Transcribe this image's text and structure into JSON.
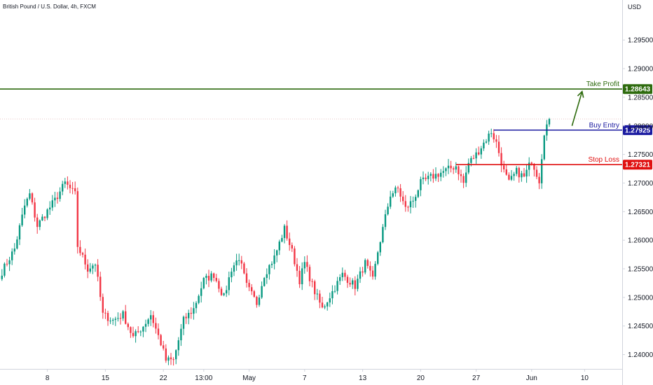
{
  "header": {
    "title": "British Pound / U.S. Dollar, 4h, FXCM",
    "currency": "USD"
  },
  "chart_data": {
    "type": "candlestick",
    "ylim": [
      1.2375,
      1.302
    ],
    "y_ticks": [
      1.24,
      1.245,
      1.25,
      1.255,
      1.26,
      1.265,
      1.27,
      1.275,
      1.28,
      1.285,
      1.29,
      1.295
    ],
    "y_tick_labels": [
      "1.24000",
      "1.24500",
      "1.25000",
      "1.25500",
      "1.26000",
      "1.26500",
      "1.27000",
      "1.27500",
      "1.28000",
      "1.28500",
      "1.29000",
      "1.29500"
    ],
    "x_labels": [
      "8",
      "15",
      "22",
      "13:00",
      "May",
      "7",
      "13",
      "20",
      "27",
      "Jun",
      "10"
    ],
    "bar_count": 246,
    "x_label_bars": [
      18,
      41,
      64,
      80,
      98,
      120,
      143,
      166,
      188,
      210,
      231
    ],
    "last_price": 1.2812,
    "levels": [
      {
        "name": "Take Profit",
        "value": 1.28643,
        "label": "1.28643",
        "color": "#2e6b0e",
        "start_bar": 0
      },
      {
        "name": "Buy Entry",
        "value": 1.27925,
        "label": "1.27925",
        "color": "#1a1aa0",
        "start_bar": 195
      },
      {
        "name": "Stop Loss",
        "value": 1.27321,
        "label": "1.27321",
        "color": "#e01010",
        "start_bar": 180
      }
    ],
    "arrow": {
      "from_bar": 226,
      "from_value": 1.28,
      "to_bar": 230,
      "to_value": 1.286,
      "color": "#2e6b0e"
    },
    "anchors": [
      [
        0,
        1.2545
      ],
      [
        5,
        1.2585
      ],
      [
        9,
        1.266
      ],
      [
        11,
        1.268
      ],
      [
        14,
        1.2625
      ],
      [
        17,
        1.2645
      ],
      [
        21,
        1.267
      ],
      [
        25,
        1.27
      ],
      [
        29,
        1.268
      ],
      [
        30,
        1.259
      ],
      [
        34,
        1.255
      ],
      [
        37,
        1.256
      ],
      [
        40,
        1.247
      ],
      [
        44,
        1.246
      ],
      [
        48,
        1.247
      ],
      [
        52,
        1.243
      ],
      [
        56,
        1.245
      ],
      [
        59,
        1.247
      ],
      [
        63,
        1.242
      ],
      [
        65,
        1.239
      ],
      [
        68,
        1.239
      ],
      [
        72,
        1.246
      ],
      [
        76,
        1.248
      ],
      [
        80,
        1.253
      ],
      [
        84,
        1.254
      ],
      [
        88,
        1.25
      ],
      [
        91,
        1.255
      ],
      [
        94,
        1.257
      ],
      [
        97,
        1.252
      ],
      [
        101,
        1.249
      ],
      [
        104,
        1.254
      ],
      [
        108,
        1.257
      ],
      [
        112,
        1.262
      ],
      [
        115,
        1.258
      ],
      [
        118,
        1.253
      ],
      [
        120,
        1.256
      ],
      [
        124,
        1.251
      ],
      [
        127,
        1.248
      ],
      [
        131,
        1.251
      ],
      [
        135,
        1.254
      ],
      [
        140,
        1.252
      ],
      [
        144,
        1.256
      ],
      [
        147,
        1.253
      ],
      [
        149,
        1.258
      ],
      [
        152,
        1.264
      ],
      [
        154,
        1.268
      ],
      [
        157,
        1.269
      ],
      [
        160,
        1.2655
      ],
      [
        163,
        1.267
      ],
      [
        166,
        1.27
      ],
      [
        170,
        1.271
      ],
      [
        175,
        1.272
      ],
      [
        180,
        1.273
      ],
      [
        183,
        1.27
      ],
      [
        185,
        1.2735
      ],
      [
        188,
        1.275
      ],
      [
        191,
        1.277
      ],
      [
        194,
        1.279
      ],
      [
        196,
        1.277
      ],
      [
        199,
        1.272
      ],
      [
        201,
        1.27
      ],
      [
        204,
        1.272
      ],
      [
        207,
        1.271
      ],
      [
        210,
        1.274
      ],
      [
        213,
        1.2705
      ],
      [
        215,
        1.279
      ],
      [
        217,
        1.2812
      ]
    ]
  }
}
